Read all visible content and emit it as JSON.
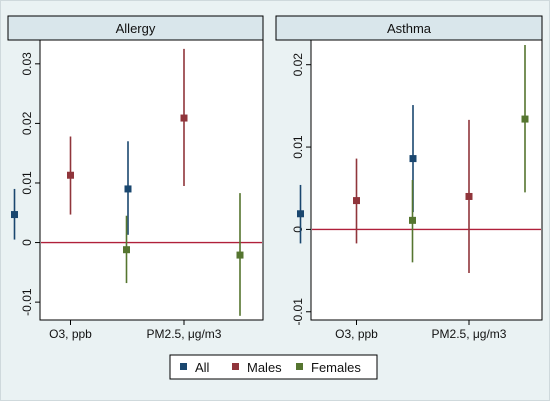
{
  "chart_data": [
    {
      "type": "scatter",
      "title": "Allergy",
      "categories": [
        "O3, ppb",
        "PM2.5, μg/m3"
      ],
      "ylim": [
        -0.013,
        0.034
      ],
      "yticks": [
        -0.01,
        0,
        0.01,
        0.02,
        0.03
      ],
      "ytick_labels": [
        "-0.01",
        "0",
        "0.01",
        "0.02",
        "0.03"
      ],
      "reference_line": 0,
      "grid": false,
      "series": [
        {
          "name": "All",
          "values": [
            0.0047,
            0.009
          ],
          "lower": [
            0.0005,
            0.0013
          ],
          "upper": [
            0.009,
            0.017
          ]
        },
        {
          "name": "Males",
          "values": [
            0.0113,
            0.0209
          ],
          "lower": [
            0.0047,
            0.0095
          ],
          "upper": [
            0.0178,
            0.0325
          ]
        },
        {
          "name": "Females",
          "values": [
            -0.0012,
            -0.0021
          ],
          "lower": [
            -0.0068,
            -0.0123
          ],
          "upper": [
            0.0045,
            0.0083
          ]
        }
      ]
    },
    {
      "type": "scatter",
      "title": "Asthma",
      "categories": [
        "O3, ppb",
        "PM2.5, μg/m3"
      ],
      "ylim": [
        -0.011,
        0.023
      ],
      "yticks": [
        -0.01,
        0,
        0.01,
        0.02
      ],
      "ytick_labels": [
        "-0.01",
        "0",
        "0.01",
        "0.02"
      ],
      "reference_line": 0,
      "grid": false,
      "series": [
        {
          "name": "All",
          "values": [
            0.0019,
            0.0086
          ],
          "lower": [
            -0.0017,
            0.0021
          ],
          "upper": [
            0.0054,
            0.0151
          ]
        },
        {
          "name": "Males",
          "values": [
            0.0035,
            0.004
          ],
          "lower": [
            -0.0017,
            -0.0053
          ],
          "upper": [
            0.0086,
            0.0133
          ]
        },
        {
          "name": "Females",
          "values": [
            0.0011,
            0.0134
          ],
          "lower": [
            -0.004,
            0.0045
          ],
          "upper": [
            0.006,
            0.0224
          ]
        }
      ]
    }
  ],
  "legend": {
    "placement": "bottom",
    "items": [
      {
        "label": "All",
        "color": "#1a476f"
      },
      {
        "label": "Males",
        "color": "#90353b"
      },
      {
        "label": "Females",
        "color": "#55752f"
      }
    ]
  },
  "colors": {
    "series": [
      "#1a476f",
      "#90353b",
      "#55752f"
    ],
    "reference_line": "#b0203a",
    "plot_background": "#ffffff",
    "strip_background": "#d9e6eb",
    "outer_background": "#eaf2f3"
  }
}
